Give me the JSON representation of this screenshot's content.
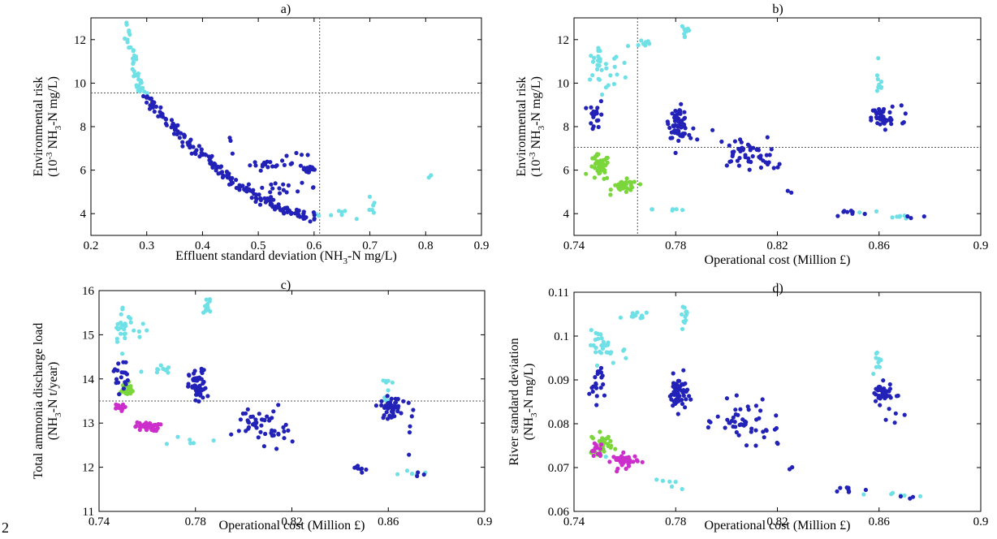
{
  "page_number": "2",
  "colors": {
    "dark_blue": "#2222b8",
    "cyan": "#6fe0e6",
    "green": "#7ad63a",
    "magenta": "#cc2ecc",
    "reference_line": "#555555"
  },
  "chart_data": [
    {
      "panel": "a)",
      "type": "scatter",
      "xlabel": {
        "pre": "Effluent standard deviation (NH",
        "sub": "3",
        "post": "-N mg/L)"
      },
      "ylabel": {
        "line1": "Environmental risk",
        "line2_pre": "(10",
        "sup": "-3",
        "line2_mid": "NH",
        "sub": "3",
        "line2_post": "-N mg/L)"
      },
      "xlim": [
        0.2,
        0.9
      ],
      "ylim": [
        3,
        13
      ],
      "xticks": [
        "0.2",
        "0.3",
        "0.4",
        "0.5",
        "0.6",
        "0.7",
        "0.8",
        "0.9"
      ],
      "yticks": [
        "4",
        "6",
        "8",
        "10",
        "12"
      ],
      "hlines": [
        9.55
      ],
      "vlines": [
        0.61
      ],
      "series": [
        {
          "color": "cyan",
          "groups": [
            {
              "type": "curve",
              "x0": 0.265,
              "x1": 0.295,
              "y0": 12.7,
              "y1": 9.6,
              "n": 40,
              "jx": 0.004,
              "jy": 0.08
            },
            {
              "type": "blob",
              "cx": 0.655,
              "cy": 4.0,
              "sx": 0.03,
              "sy": 0.12,
              "n": 10
            },
            {
              "type": "blob",
              "cx": 0.71,
              "cy": 4.4,
              "sx": 0.005,
              "sy": 0.3,
              "n": 4
            },
            {
              "type": "blob",
              "cx": 0.805,
              "cy": 5.7,
              "sx": 0.003,
              "sy": 0.04,
              "n": 2
            }
          ]
        },
        {
          "color": "dark_blue",
          "groups": [
            {
              "type": "curve",
              "x0": 0.295,
              "x1": 0.6,
              "y0": 9.4,
              "y1": 3.85,
              "n": 190,
              "jx": 0.006,
              "jy": 0.1
            },
            {
              "type": "blob",
              "cx": 0.525,
              "cy": 6.25,
              "sx": 0.02,
              "sy": 0.08,
              "n": 18
            },
            {
              "type": "blob",
              "cx": 0.59,
              "cy": 6.05,
              "sx": 0.008,
              "sy": 0.12,
              "n": 18
            },
            {
              "type": "blob",
              "cx": 0.55,
              "cy": 5.2,
              "sx": 0.03,
              "sy": 0.1,
              "n": 15
            },
            {
              "type": "blob",
              "cx": 0.45,
              "cy": 7.2,
              "sx": 0.004,
              "sy": 0.3,
              "n": 3
            },
            {
              "type": "blob",
              "cx": 0.575,
              "cy": 6.7,
              "sx": 0.015,
              "sy": 0.15,
              "n": 4
            }
          ]
        }
      ]
    },
    {
      "panel": "b)",
      "type": "scatter",
      "xlabel": {
        "pre": "Operational cost (Million £)",
        "sub": "",
        "post": ""
      },
      "ylabel": {
        "line1": "Environmental risk",
        "line2_pre": "(10",
        "sup": "-3",
        "line2_mid": "NH",
        "sub": "3",
        "line2_post": "-N mg/L)"
      },
      "xlim": [
        0.74,
        0.9
      ],
      "ylim": [
        3,
        13
      ],
      "xticks": [
        "0.74",
        "0.78",
        "0.82",
        "0.86",
        "0.9"
      ],
      "yticks": [
        "4",
        "6",
        "8",
        "10",
        "12"
      ],
      "hlines": [
        7.05
      ],
      "vlines": [
        0.765
      ],
      "series": [
        {
          "color": "cyan",
          "groups": [
            {
              "type": "blob",
              "cx": 0.749,
              "cy": 10.8,
              "sx": 0.002,
              "sy": 0.35,
              "n": 22
            },
            {
              "type": "blob",
              "cx": 0.757,
              "cy": 10.4,
              "sx": 0.003,
              "sy": 0.5,
              "n": 10
            },
            {
              "type": "blob",
              "cx": 0.766,
              "cy": 11.8,
              "sx": 0.003,
              "sy": 0.15,
              "n": 8
            },
            {
              "type": "blob",
              "cx": 0.784,
              "cy": 12.4,
              "sx": 0.001,
              "sy": 0.25,
              "n": 10
            },
            {
              "type": "blob",
              "cx": 0.779,
              "cy": 4.2,
              "sx": 0.004,
              "sy": 0.05,
              "n": 6
            },
            {
              "type": "blob",
              "cx": 0.86,
              "cy": 10.0,
              "sx": 0.0008,
              "sy": 0.35,
              "n": 10
            },
            {
              "type": "blob",
              "cx": 0.87,
              "cy": 3.85,
              "sx": 0.004,
              "sy": 0.05,
              "n": 6
            },
            {
              "type": "blob",
              "cx": 0.855,
              "cy": 4.0,
              "sx": 0.004,
              "sy": 0.08,
              "n": 3
            }
          ]
        },
        {
          "color": "green",
          "groups": [
            {
              "type": "blob",
              "cx": 0.75,
              "cy": 6.1,
              "sx": 0.002,
              "sy": 0.3,
              "n": 40
            },
            {
              "type": "blob",
              "cx": 0.76,
              "cy": 5.25,
              "sx": 0.0025,
              "sy": 0.15,
              "n": 35
            }
          ]
        },
        {
          "color": "dark_blue",
          "groups": [
            {
              "type": "blob",
              "cx": 0.749,
              "cy": 8.5,
              "sx": 0.0015,
              "sy": 0.35,
              "n": 18
            },
            {
              "type": "blob",
              "cx": 0.781,
              "cy": 8.2,
              "sx": 0.0018,
              "sy": 0.35,
              "n": 60
            },
            {
              "type": "blob",
              "cx": 0.785,
              "cy": 7.6,
              "sx": 0.003,
              "sy": 0.3,
              "n": 8
            },
            {
              "type": "blob",
              "cx": 0.806,
              "cy": 6.8,
              "sx": 0.005,
              "sy": 0.35,
              "n": 40
            },
            {
              "type": "blob",
              "cx": 0.815,
              "cy": 6.2,
              "sx": 0.004,
              "sy": 0.3,
              "n": 10
            },
            {
              "type": "blob",
              "cx": 0.861,
              "cy": 8.4,
              "sx": 0.002,
              "sy": 0.3,
              "n": 45
            },
            {
              "type": "blob",
              "cx": 0.87,
              "cy": 8.6,
              "sx": 0.003,
              "sy": 0.3,
              "n": 6
            },
            {
              "type": "blob",
              "cx": 0.848,
              "cy": 4.05,
              "sx": 0.003,
              "sy": 0.1,
              "n": 8
            },
            {
              "type": "blob",
              "cx": 0.873,
              "cy": 3.9,
              "sx": 0.003,
              "sy": 0.08,
              "n": 3
            },
            {
              "type": "blob",
              "cx": 0.825,
              "cy": 5.0,
              "sx": 0.001,
              "sy": 0.05,
              "n": 2
            }
          ]
        }
      ]
    },
    {
      "panel": "c)",
      "type": "scatter",
      "xlabel": {
        "pre": "Operational cost (Million £)",
        "sub": "",
        "post": ""
      },
      "ylabel": {
        "line1": "Total ammonia discharge load",
        "line2_pre": "(NH",
        "sup": "",
        "line2_mid": "",
        "sub": "3",
        "line2_post": "-N t/year)"
      },
      "xlim": [
        0.74,
        0.9
      ],
      "ylim": [
        11,
        16
      ],
      "xticks": [
        "0.74",
        "0.78",
        "0.82",
        "0.86",
        "0.9"
      ],
      "yticks": [
        "11",
        "12",
        "13",
        "14",
        "15",
        "16"
      ],
      "hlines": [
        13.5
      ],
      "vlines": [],
      "series": [
        {
          "color": "cyan",
          "groups": [
            {
              "type": "blob",
              "cx": 0.75,
              "cy": 15.2,
              "sx": 0.002,
              "sy": 0.22,
              "n": 22
            },
            {
              "type": "blob",
              "cx": 0.756,
              "cy": 15.1,
              "sx": 0.003,
              "sy": 0.25,
              "n": 8
            },
            {
              "type": "blob",
              "cx": 0.764,
              "cy": 14.2,
              "sx": 0.003,
              "sy": 0.06,
              "n": 10
            },
            {
              "type": "blob",
              "cx": 0.785,
              "cy": 15.7,
              "sx": 0.001,
              "sy": 0.12,
              "n": 12
            },
            {
              "type": "blob",
              "cx": 0.778,
              "cy": 12.6,
              "sx": 0.004,
              "sy": 0.06,
              "n": 6
            },
            {
              "type": "blob",
              "cx": 0.86,
              "cy": 13.8,
              "sx": 0.0008,
              "sy": 0.15,
              "n": 10
            },
            {
              "type": "blob",
              "cx": 0.868,
              "cy": 11.9,
              "sx": 0.004,
              "sy": 0.05,
              "n": 6
            }
          ]
        },
        {
          "color": "green",
          "groups": [
            {
              "type": "blob",
              "cx": 0.751,
              "cy": 13.75,
              "sx": 0.002,
              "sy": 0.08,
              "n": 30
            }
          ]
        },
        {
          "color": "magenta",
          "groups": [
            {
              "type": "blob",
              "cx": 0.748,
              "cy": 13.35,
              "sx": 0.0012,
              "sy": 0.04,
              "n": 12
            },
            {
              "type": "blob",
              "cx": 0.76,
              "cy": 12.92,
              "sx": 0.0025,
              "sy": 0.05,
              "n": 40
            }
          ]
        },
        {
          "color": "dark_blue",
          "groups": [
            {
              "type": "blob",
              "cx": 0.749,
              "cy": 14.1,
              "sx": 0.0015,
              "sy": 0.2,
              "n": 20
            },
            {
              "type": "blob",
              "cx": 0.781,
              "cy": 13.8,
              "sx": 0.0018,
              "sy": 0.2,
              "n": 60
            },
            {
              "type": "blob",
              "cx": 0.806,
              "cy": 13.0,
              "sx": 0.005,
              "sy": 0.2,
              "n": 40
            },
            {
              "type": "blob",
              "cx": 0.816,
              "cy": 12.75,
              "sx": 0.004,
              "sy": 0.15,
              "n": 10
            },
            {
              "type": "blob",
              "cx": 0.861,
              "cy": 13.35,
              "sx": 0.002,
              "sy": 0.12,
              "n": 45
            },
            {
              "type": "blob",
              "cx": 0.868,
              "cy": 13.0,
              "sx": 0.004,
              "sy": 0.3,
              "n": 6
            },
            {
              "type": "blob",
              "cx": 0.848,
              "cy": 12.0,
              "sx": 0.003,
              "sy": 0.06,
              "n": 8
            },
            {
              "type": "blob",
              "cx": 0.873,
              "cy": 11.85,
              "sx": 0.002,
              "sy": 0.05,
              "n": 3
            }
          ]
        }
      ]
    },
    {
      "panel": "d)",
      "type": "scatter",
      "xlabel": {
        "pre": "Operational cost (Million £)",
        "sub": "",
        "post": ""
      },
      "ylabel": {
        "line1": "River standard deviation",
        "line2_pre": "(NH",
        "sup": "",
        "line2_mid": "",
        "sub": "3",
        "line2_post": "-N mg/L)"
      },
      "xlim": [
        0.74,
        0.9
      ],
      "ylim": [
        0.06,
        0.11
      ],
      "xticks": [
        "0.74",
        "0.78",
        "0.82",
        "0.86",
        "0.9"
      ],
      "yticks": [
        "0.06",
        "0.07",
        "0.08",
        "0.09",
        "0.1",
        "0.11"
      ],
      "hlines": [],
      "vlines": [],
      "series": [
        {
          "color": "cyan",
          "groups": [
            {
              "type": "blob",
              "cx": 0.75,
              "cy": 0.098,
              "sx": 0.002,
              "sy": 0.0015,
              "n": 22
            },
            {
              "type": "blob",
              "cx": 0.757,
              "cy": 0.0965,
              "sx": 0.003,
              "sy": 0.001,
              "n": 8
            },
            {
              "type": "blob",
              "cx": 0.765,
              "cy": 0.1045,
              "sx": 0.003,
              "sy": 0.0006,
              "n": 12
            },
            {
              "type": "blob",
              "cx": 0.784,
              "cy": 0.105,
              "sx": 0.001,
              "sy": 0.0012,
              "n": 12
            },
            {
              "type": "blob",
              "cx": 0.778,
              "cy": 0.066,
              "sx": 0.004,
              "sy": 0.0006,
              "n": 6
            },
            {
              "type": "blob",
              "cx": 0.86,
              "cy": 0.094,
              "sx": 0.0008,
              "sy": 0.0015,
              "n": 10
            },
            {
              "type": "blob",
              "cx": 0.869,
              "cy": 0.0638,
              "sx": 0.004,
              "sy": 0.0004,
              "n": 6
            },
            {
              "type": "blob",
              "cx": 0.752,
              "cy": 0.0735,
              "sx": 0.001,
              "sy": 0.0005,
              "n": 3
            }
          ]
        },
        {
          "color": "green",
          "groups": [
            {
              "type": "blob",
              "cx": 0.751,
              "cy": 0.0755,
              "sx": 0.002,
              "sy": 0.0012,
              "n": 30
            }
          ]
        },
        {
          "color": "magenta",
          "groups": [
            {
              "type": "blob",
              "cx": 0.749,
              "cy": 0.074,
              "sx": 0.0015,
              "sy": 0.0008,
              "n": 15
            },
            {
              "type": "blob",
              "cx": 0.76,
              "cy": 0.0715,
              "sx": 0.0025,
              "sy": 0.0008,
              "n": 40
            }
          ]
        },
        {
          "color": "dark_blue",
          "groups": [
            {
              "type": "blob",
              "cx": 0.749,
              "cy": 0.0895,
              "sx": 0.0015,
              "sy": 0.0022,
              "n": 20
            },
            {
              "type": "blob",
              "cx": 0.781,
              "cy": 0.087,
              "sx": 0.0018,
              "sy": 0.002,
              "n": 60
            },
            {
              "type": "blob",
              "cx": 0.806,
              "cy": 0.0805,
              "sx": 0.005,
              "sy": 0.0022,
              "n": 40
            },
            {
              "type": "blob",
              "cx": 0.816,
              "cy": 0.0775,
              "sx": 0.004,
              "sy": 0.0015,
              "n": 10
            },
            {
              "type": "blob",
              "cx": 0.861,
              "cy": 0.0868,
              "sx": 0.002,
              "sy": 0.0012,
              "n": 45
            },
            {
              "type": "blob",
              "cx": 0.868,
              "cy": 0.082,
              "sx": 0.004,
              "sy": 0.004,
              "n": 6
            },
            {
              "type": "blob",
              "cx": 0.848,
              "cy": 0.065,
              "sx": 0.003,
              "sy": 0.0005,
              "n": 8
            },
            {
              "type": "blob",
              "cx": 0.873,
              "cy": 0.0635,
              "sx": 0.002,
              "sy": 0.0004,
              "n": 3
            },
            {
              "type": "blob",
              "cx": 0.826,
              "cy": 0.07,
              "sx": 0.001,
              "sy": 0.0004,
              "n": 2
            }
          ]
        }
      ]
    }
  ]
}
